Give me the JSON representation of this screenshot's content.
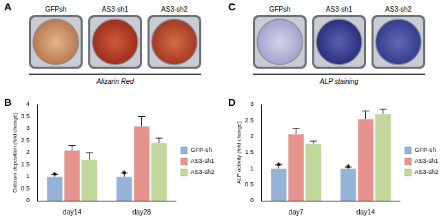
{
  "image_panels": [
    {
      "panel_label": "A",
      "wells": [
        "GFPsh",
        "AS3-sh1",
        "AS3-sh2"
      ],
      "caption": "Alizarin Red"
    },
    {
      "panel_label": "C",
      "wells": [
        "GFPsh",
        "AS3-sh1",
        "AS3-sh2"
      ],
      "caption": "ALP staining"
    }
  ],
  "chart_data": [
    {
      "type": "bar",
      "panel_label": "B",
      "y_label": "Calcium deposition (fold change)",
      "categories": [
        "day14",
        "day28"
      ],
      "series": [
        {
          "name": "GFP-sh",
          "color": "#95b3d7",
          "values": [
            1,
            1
          ],
          "errors": [
            0.1,
            0.15
          ]
        },
        {
          "name": "AS3-sh1",
          "color": "#e6938d",
          "values": [
            2.1,
            3.1
          ],
          "errors": [
            0.2,
            0.4
          ]
        },
        {
          "name": "AS3-sh2",
          "color": "#c3d69b",
          "values": [
            1.7,
            2.4
          ],
          "errors": [
            0.3,
            0.2
          ]
        }
      ],
      "annotations": [
        {
          "text": "*",
          "category": "day14",
          "series": "GFP-sh"
        },
        {
          "text": "*",
          "category": "day28",
          "series": "GFP-sh"
        }
      ],
      "ylim": [
        0,
        4
      ],
      "yticks": [
        0,
        0.5,
        1,
        1.5,
        2,
        2.5,
        3,
        3.5,
        4
      ],
      "grid": false,
      "legend": "right"
    },
    {
      "type": "bar",
      "panel_label": "D",
      "y_label": "ALP activity (fold change)",
      "categories": [
        "day7",
        "day14"
      ],
      "series": [
        {
          "name": "GFP-sh",
          "color": "#95b3d7",
          "values": [
            1,
            1
          ],
          "errors": [
            0.12,
            0.05
          ]
        },
        {
          "name": "AS3-sh1",
          "color": "#e6938d",
          "values": [
            2.08,
            2.55
          ],
          "errors": [
            0.18,
            0.25
          ]
        },
        {
          "name": "AS3-sh2",
          "color": "#c3d69b",
          "values": [
            1.78,
            2.7
          ],
          "errors": [
            0.08,
            0.15
          ]
        }
      ],
      "annotations": [
        {
          "text": "*",
          "category": "day7",
          "series": "GFP-sh"
        },
        {
          "text": "*",
          "category": "day14",
          "series": "GFP-sh"
        }
      ],
      "ylim": [
        0,
        3
      ],
      "yticks": [
        0,
        0.5,
        1,
        1.5,
        2,
        2.5,
        3
      ],
      "grid": false,
      "legend": "right"
    }
  ]
}
